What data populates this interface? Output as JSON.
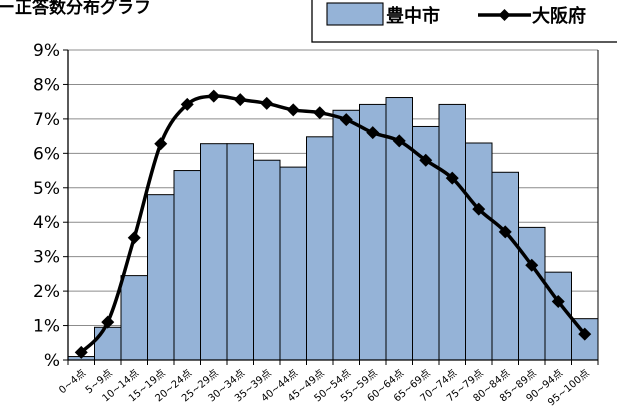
{
  "chart_data": {
    "type": "bar",
    "title": "",
    "title_fragment": "ー正答数分布グラフ",
    "xlabel": "",
    "ylabel": "",
    "categories": [
      "0~4点",
      "5~9点",
      "10~14点",
      "15~19点",
      "20~24点",
      "25~29点",
      "30~34点",
      "35~39点",
      "40~44点",
      "45~49点",
      "50~54点",
      "55~59点",
      "60~64点",
      "65~69点",
      "70~74点",
      "75~79点",
      "80~84点",
      "85~89点",
      "90~94点",
      "95~100点"
    ],
    "series": [
      {
        "name": "豊中市",
        "kind": "bar",
        "color": "#95b3d7",
        "values": [
          0.1,
          0.95,
          2.45,
          4.8,
          5.5,
          6.28,
          6.28,
          5.8,
          5.6,
          6.48,
          7.25,
          7.42,
          7.62,
          6.78,
          7.42,
          6.3,
          5.45,
          3.85,
          2.55,
          1.2
        ]
      },
      {
        "name": "大阪府",
        "kind": "line",
        "color": "#000000",
        "values": [
          0.22,
          1.1,
          3.55,
          6.28,
          7.42,
          7.66,
          7.56,
          7.45,
          7.26,
          7.18,
          6.98,
          6.6,
          6.36,
          5.8,
          5.28,
          4.38,
          3.72,
          2.75,
          1.7,
          0.75
        ]
      }
    ],
    "ylim": [
      0,
      9
    ],
    "y_ticks": [
      0,
      1,
      2,
      3,
      4,
      5,
      6,
      7,
      8,
      9
    ],
    "y_tick_labels": [
      "%",
      "1%",
      "2%",
      "3%",
      "4%",
      "5%",
      "6%",
      "7%",
      "8%",
      "9%"
    ],
    "grid": true,
    "legend_position": "top-right"
  }
}
